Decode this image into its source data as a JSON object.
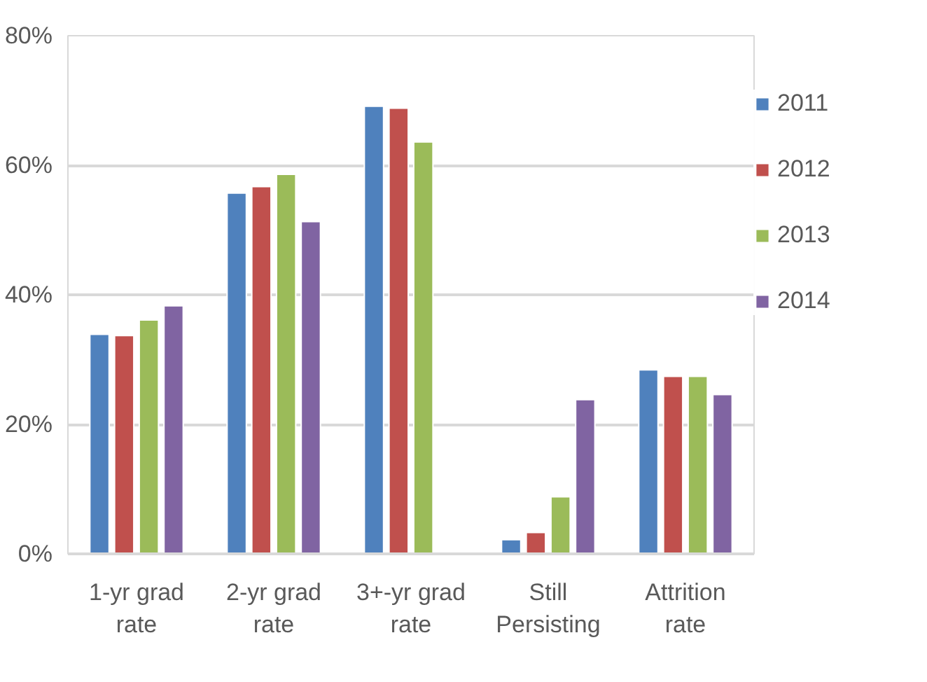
{
  "chart_data": {
    "type": "bar",
    "categories": [
      "1-yr grad rate",
      "2-yr grad rate",
      "3+-yr grad rate",
      "Still Persisting",
      "Attrition rate"
    ],
    "series": [
      {
        "name": "2011",
        "color": "#4f81bd",
        "values": [
          33.9,
          55.7,
          69.1,
          2.2,
          28.4
        ]
      },
      {
        "name": "2012",
        "color": "#c0504d",
        "values": [
          33.7,
          56.7,
          68.8,
          3.3,
          27.4
        ]
      },
      {
        "name": "2013",
        "color": "#9bbb59",
        "values": [
          36.1,
          58.6,
          63.6,
          8.8,
          27.4
        ]
      },
      {
        "name": "2014",
        "color": "#8064a2",
        "values": [
          38.3,
          51.3,
          null,
          23.8,
          24.6
        ]
      }
    ],
    "ylim": [
      0,
      80
    ],
    "yticks": [
      {
        "value": 0,
        "label": "0%"
      },
      {
        "value": 20,
        "label": "20%"
      },
      {
        "value": 40,
        "label": "40%"
      },
      {
        "value": 60,
        "label": "60%"
      },
      {
        "value": 80,
        "label": "80%"
      }
    ],
    "grid": "y",
    "legend": "right"
  }
}
